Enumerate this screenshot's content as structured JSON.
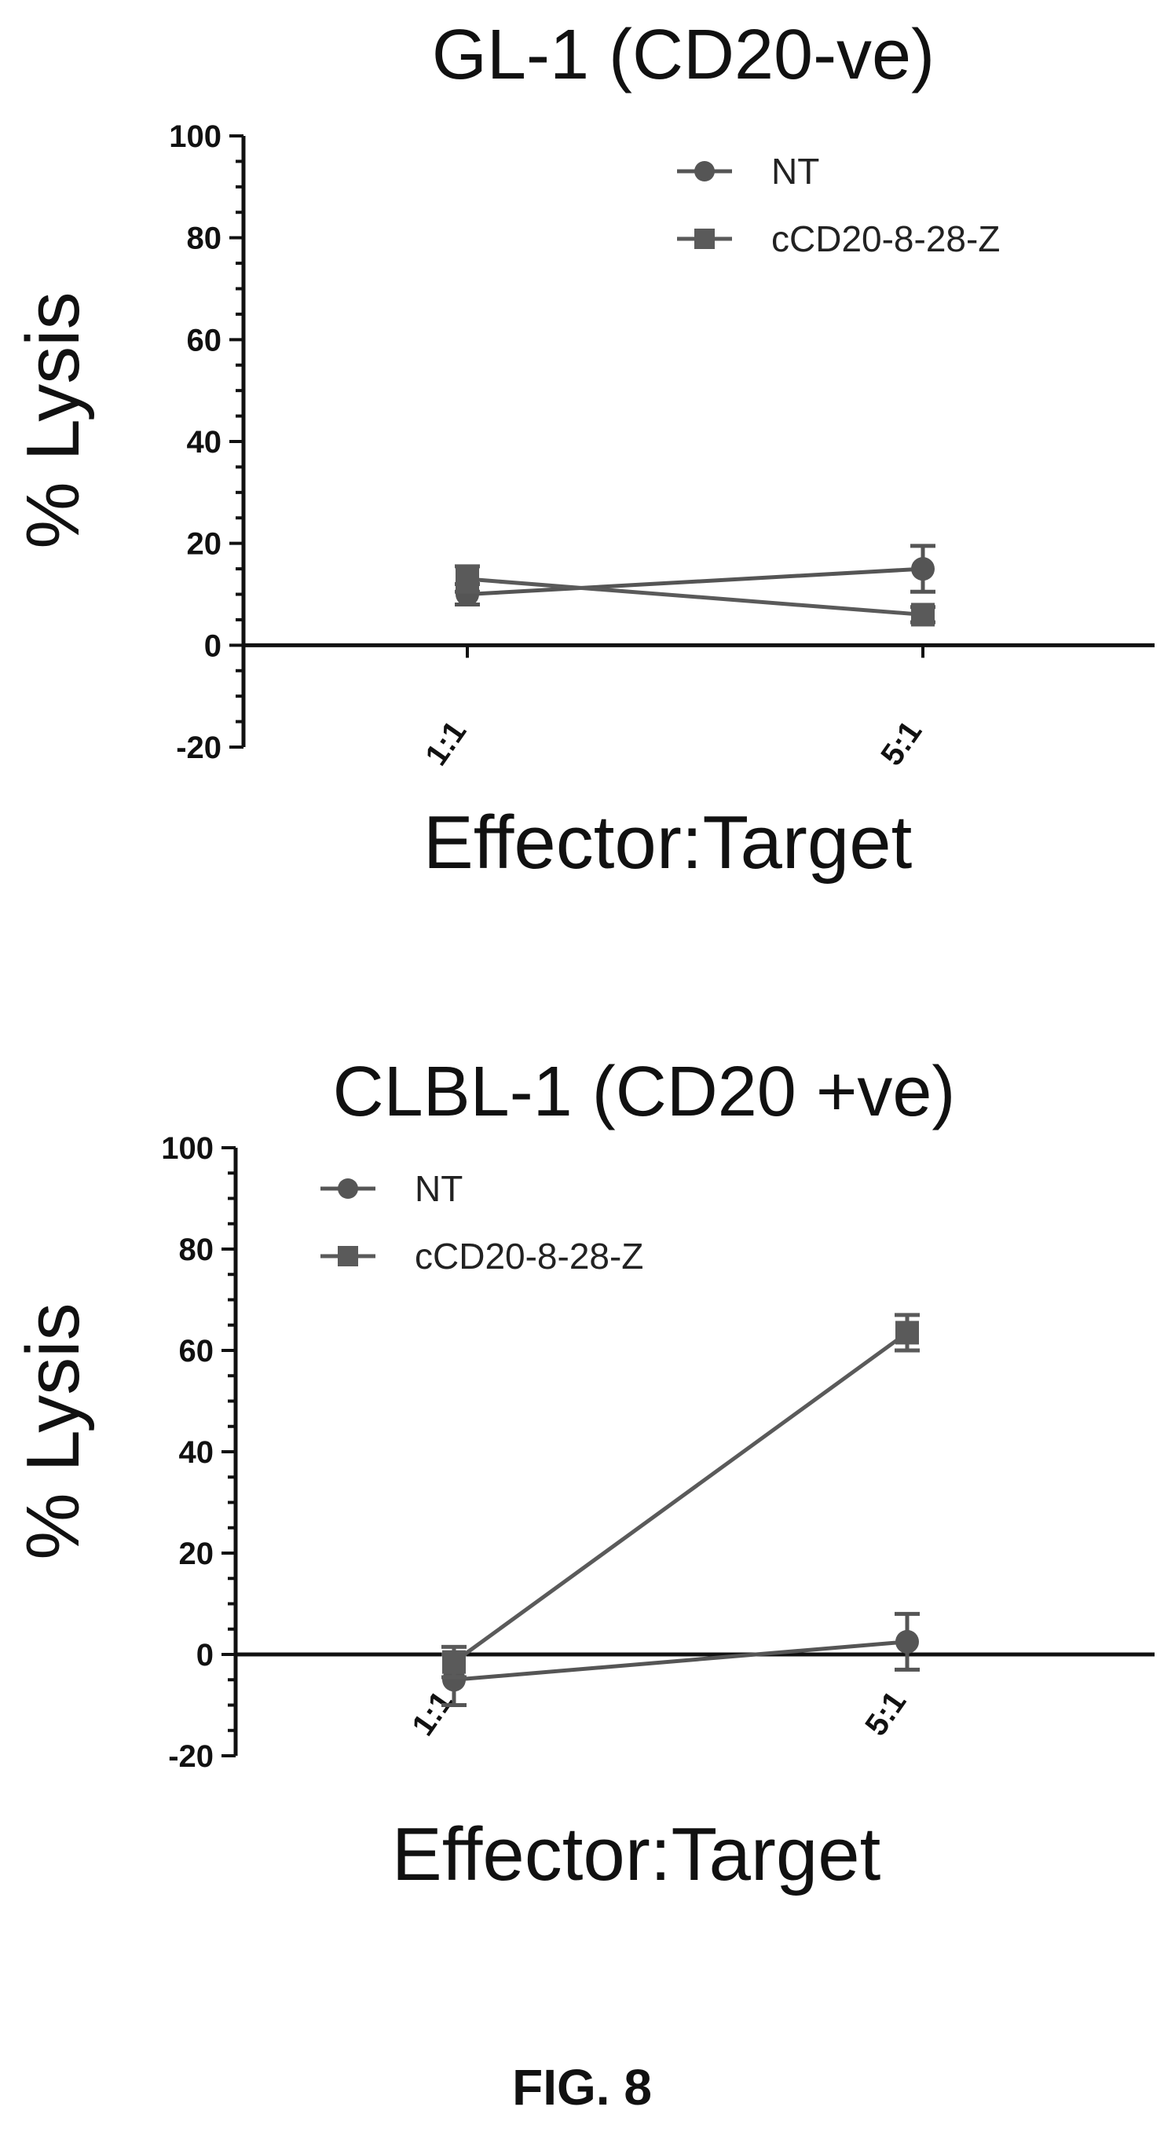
{
  "figure_label": "FIG. 8",
  "chart_data": [
    {
      "type": "line",
      "title": "GL-1 (CD20-ve)",
      "xlabel": "Effector:Target",
      "ylabel": "% Lysis",
      "categories": [
        "1:1",
        "5:1"
      ],
      "ylim": [
        -20,
        100
      ],
      "yticks": [
        -20,
        0,
        20,
        40,
        60,
        80,
        100
      ],
      "grid": false,
      "legend_position": "top-right",
      "series": [
        {
          "name": "NT",
          "marker": "circle",
          "values": [
            10,
            15
          ],
          "errors": [
            2,
            4.5
          ],
          "color": "#555555"
        },
        {
          "name": "cCD20-8-28-Z",
          "marker": "square",
          "values": [
            13,
            6
          ],
          "errors": [
            2.5,
            1.5
          ],
          "color": "#5a5a5a"
        }
      ]
    },
    {
      "type": "line",
      "title": "CLBL-1 (CD20 +ve)",
      "xlabel": "Effector:Target",
      "ylabel": "% Lysis",
      "categories": [
        "1:1",
        "5:1"
      ],
      "ylim": [
        -20,
        100
      ],
      "yticks": [
        -20,
        0,
        20,
        40,
        60,
        80,
        100
      ],
      "grid": false,
      "legend_position": "top-left",
      "series": [
        {
          "name": "NT",
          "marker": "circle",
          "values": [
            -5,
            2.5
          ],
          "errors": [
            5,
            5.5
          ],
          "color": "#555555"
        },
        {
          "name": "cCD20-8-28-Z",
          "marker": "square",
          "values": [
            -1.5,
            63.5
          ],
          "errors": [
            3,
            3.5
          ],
          "color": "#5a5a5a"
        }
      ]
    }
  ]
}
